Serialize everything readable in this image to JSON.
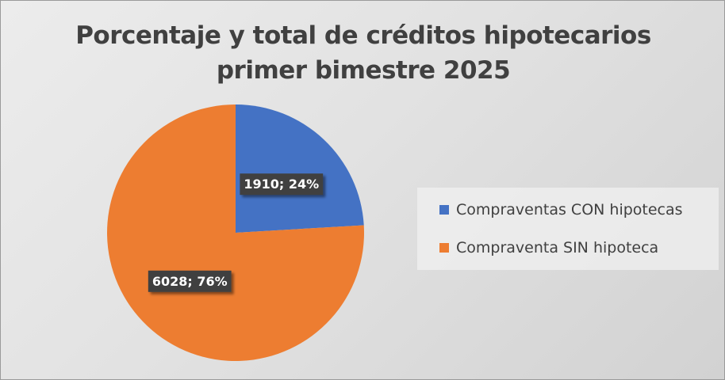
{
  "chart_data": {
    "type": "pie",
    "title": "Porcentaje y total de créditos hipotecarios primer bimestre 2025",
    "title_lines": [
      "Porcentaje y total de créditos hipotecarios",
      "primer bimestre 2025"
    ],
    "categories": [
      "Compraventas CON hipotecas",
      "Compraventa SIN hipoteca"
    ],
    "values": [
      1910,
      6028
    ],
    "percentages": [
      24,
      76
    ],
    "data_labels": [
      "1910; 24%",
      "6028; 76%"
    ],
    "colors": [
      "#4472C4",
      "#ED7D31"
    ],
    "legend_position": "right",
    "start_angle_deg": 0,
    "direction": "clockwise"
  }
}
